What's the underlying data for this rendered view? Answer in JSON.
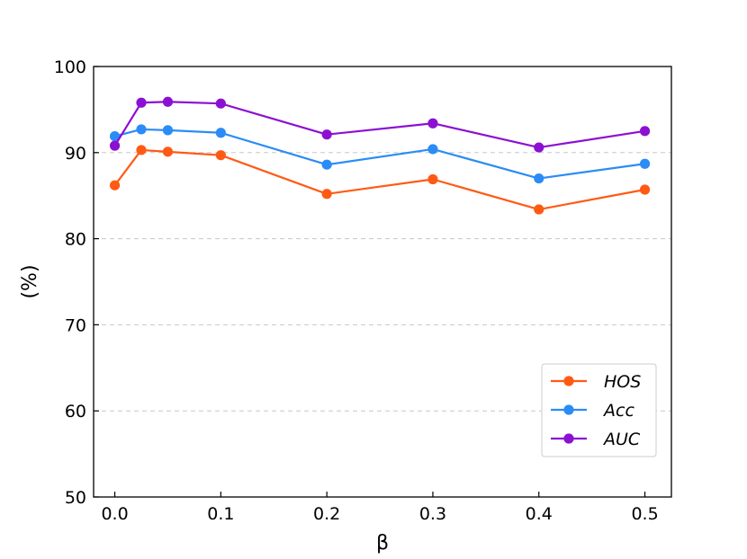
{
  "chart_data": {
    "type": "line",
    "title": "",
    "xlabel": "β",
    "ylabel": "(%)",
    "x": [
      0.0,
      0.025,
      0.05,
      0.1,
      0.2,
      0.3,
      0.4,
      0.5
    ],
    "xlim": [
      -0.02,
      0.525
    ],
    "ylim": [
      50,
      100
    ],
    "xticks": [
      0.0,
      0.1,
      0.2,
      0.3,
      0.4,
      0.5
    ],
    "xtick_labels": [
      "0.0",
      "0.1",
      "0.2",
      "0.3",
      "0.4",
      "0.5"
    ],
    "yticks": [
      50,
      60,
      70,
      80,
      90,
      100
    ],
    "ytick_labels": [
      "50",
      "60",
      "70",
      "80",
      "90",
      "100"
    ],
    "grid": "horizontal dashed",
    "legend_position": "lower-right",
    "series": [
      {
        "name": "HOS",
        "color": "#ff5a14",
        "values": [
          86.2,
          90.3,
          90.1,
          89.7,
          85.2,
          86.9,
          83.4,
          85.7
        ]
      },
      {
        "name": "Acc",
        "color": "#2b8cf5",
        "values": [
          91.9,
          92.7,
          92.6,
          92.3,
          88.6,
          90.4,
          87.0,
          88.7
        ]
      },
      {
        "name": "AUC",
        "color": "#8c10d2",
        "values": [
          90.8,
          95.8,
          95.9,
          95.7,
          92.1,
          93.4,
          90.6,
          92.5
        ]
      }
    ]
  }
}
